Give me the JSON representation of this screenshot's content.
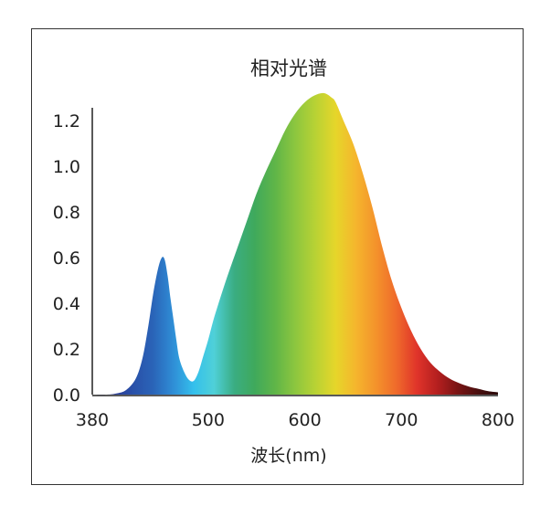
{
  "chart_data": {
    "type": "area",
    "title": "相对光谱",
    "xlabel": "波长(nm)",
    "ylabel": "",
    "xlim": [
      380,
      800
    ],
    "ylim": [
      0,
      1.3
    ],
    "x_ticks": [
      "380",
      "500",
      "600",
      "700",
      "800"
    ],
    "y_ticks": [
      "0.0",
      "0.2",
      "0.4",
      "0.6",
      "0.8",
      "1.0",
      "1.2"
    ],
    "grid": false,
    "series": [
      {
        "x": [
          380,
          395,
          405,
          415,
          425,
          432,
          438,
          443,
          448,
          452,
          455,
          458,
          461,
          464,
          467,
          470,
          475,
          480,
          485,
          490,
          495,
          500,
          505,
          510,
          520,
          530,
          540,
          550,
          560,
          570,
          580,
          590,
          600,
          610,
          620,
          628,
          632,
          640,
          650,
          660,
          670,
          680,
          690,
          700,
          710,
          720,
          730,
          740,
          750,
          760,
          770,
          780,
          790,
          800
        ],
        "values": [
          0.0,
          0.0,
          0.005,
          0.02,
          0.07,
          0.16,
          0.3,
          0.44,
          0.55,
          0.6,
          0.59,
          0.52,
          0.42,
          0.33,
          0.24,
          0.16,
          0.1,
          0.065,
          0.06,
          0.1,
          0.17,
          0.24,
          0.32,
          0.39,
          0.52,
          0.64,
          0.76,
          0.88,
          0.98,
          1.07,
          1.16,
          1.23,
          1.28,
          1.31,
          1.32,
          1.3,
          1.28,
          1.2,
          1.1,
          0.97,
          0.82,
          0.65,
          0.5,
          0.38,
          0.28,
          0.2,
          0.14,
          0.1,
          0.07,
          0.05,
          0.035,
          0.025,
          0.015,
          0.01
        ]
      }
    ]
  },
  "colors": {
    "spectrum_stops": [
      "#2a2f7a",
      "#2b3b95",
      "#2950a8",
      "#2a64b8",
      "#2f8ed6",
      "#34c0ec",
      "#4fd0d8",
      "#3aad82",
      "#3fa95c",
      "#5fb548",
      "#8cc63f",
      "#b8d234",
      "#e6d62a",
      "#f5b52d",
      "#f4922b",
      "#ef6a2b",
      "#e0342a",
      "#b51f1f",
      "#7a1414",
      "#4a0f0f",
      "#2a0a0a"
    ],
    "frame": "#333333",
    "axis": "#222222"
  }
}
